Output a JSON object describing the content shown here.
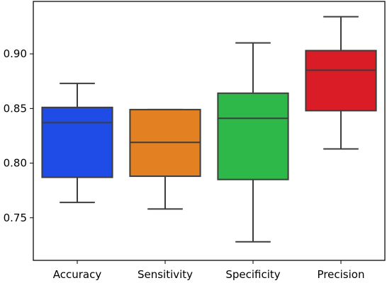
{
  "chart_data": {
    "type": "box",
    "title": "",
    "xlabel": "",
    "ylabel": "",
    "categories": [
      "Accuracy",
      "Sensitivity",
      "Specificity",
      "Precision"
    ],
    "ylim": [
      0.711,
      0.948
    ],
    "yticks": [
      0.75,
      0.8,
      0.85,
      0.9
    ],
    "ytick_labels": [
      "0.75",
      "0.80",
      "0.85",
      "0.90"
    ],
    "grid": false,
    "legend": "none",
    "boxes": [
      {
        "name": "Accuracy",
        "whisker_low": 0.764,
        "q1": 0.787,
        "median": 0.837,
        "q3": 0.851,
        "whisker_high": 0.873,
        "color": "#1f4ce6"
      },
      {
        "name": "Sensitivity",
        "whisker_low": 0.758,
        "q1": 0.788,
        "median": 0.819,
        "q3": 0.849,
        "whisker_high": 0.849,
        "color": "#e38122"
      },
      {
        "name": "Specificity",
        "whisker_low": 0.728,
        "q1": 0.785,
        "median": 0.841,
        "q3": 0.864,
        "whisker_high": 0.91,
        "color": "#2eb84a"
      },
      {
        "name": "Precision",
        "whisker_low": 0.813,
        "q1": 0.848,
        "median": 0.885,
        "q3": 0.903,
        "whisker_high": 0.934,
        "color": "#d91c26"
      }
    ]
  }
}
